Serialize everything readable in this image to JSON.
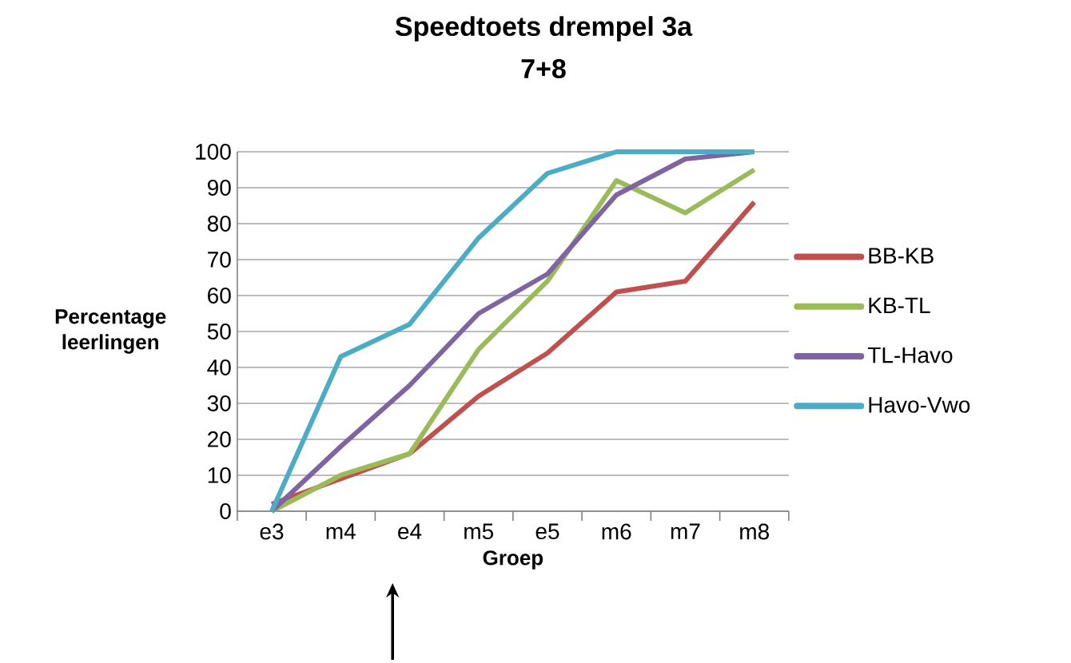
{
  "chart_data": {
    "type": "line",
    "title": "Speedtoets drempel 3a",
    "subtitle": "7+8",
    "xlabel": "Groep",
    "ylabel": "Percentage leerlingen",
    "categories": [
      "e3",
      "m4",
      "e4",
      "m5",
      "e5",
      "m6",
      "m7",
      "m8"
    ],
    "series": [
      {
        "name": "BB-KB",
        "color": "#c0504d",
        "values": [
          2,
          9,
          16,
          32,
          44,
          61,
          64,
          86
        ]
      },
      {
        "name": "KB-TL",
        "color": "#9bbb59",
        "values": [
          0,
          10,
          16,
          45,
          64,
          92,
          83,
          95
        ]
      },
      {
        "name": "TL-Havo",
        "color": "#8064a2",
        "values": [
          0,
          18,
          35,
          55,
          66,
          88,
          98,
          100
        ]
      },
      {
        "name": "Havo-Vwo",
        "color": "#4bacc6",
        "values": [
          0,
          43,
          52,
          76,
          94,
          100,
          100,
          100
        ]
      }
    ],
    "ylim": [
      0,
      100
    ],
    "yticks": [
      0,
      10,
      20,
      30,
      40,
      50,
      60,
      70,
      80,
      90,
      100
    ],
    "grid": "y",
    "legend": "right",
    "marker": "none",
    "line_style": "solid"
  }
}
